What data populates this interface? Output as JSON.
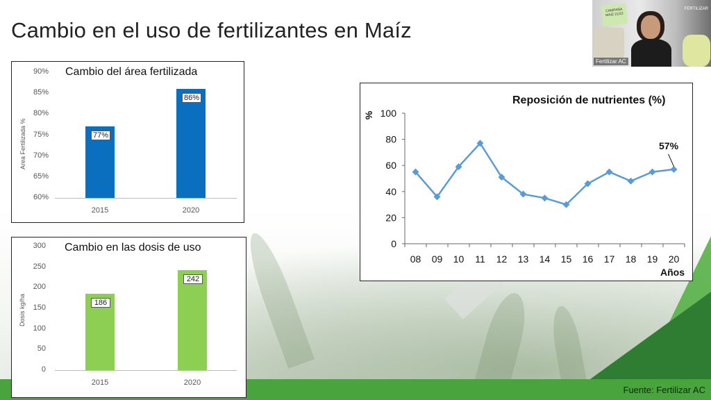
{
  "slide": {
    "title": "Cambio en el uso de fertilizantes en Maíz",
    "source": "Fuente: Fertilizar AC"
  },
  "video": {
    "participant_name": "Fertilizar AC",
    "brand_logo": "FERTILIZAR",
    "sticky_note": "CAMPAÑA MAÍZ 21/22"
  },
  "chart_data": [
    {
      "type": "bar",
      "title": "Cambio del área fertilizada",
      "ylabel": "Area Fertilizada %",
      "categories": [
        "2015",
        "2020"
      ],
      "values": [
        77,
        86
      ],
      "value_labels": [
        "77%",
        "86%"
      ],
      "yticks": [
        "60%",
        "65%",
        "70%",
        "75%",
        "80%",
        "85%",
        "90%"
      ],
      "ylim": [
        60,
        90
      ],
      "color": "#0b6fc0"
    },
    {
      "type": "bar",
      "title": "Cambio en las dosis de uso",
      "ylabel": "Dosis kg/ha",
      "categories": [
        "2015",
        "2020"
      ],
      "values": [
        186,
        242
      ],
      "value_labels": [
        "186",
        "242"
      ],
      "yticks": [
        "0",
        "50",
        "100",
        "150",
        "200",
        "250",
        "300"
      ],
      "ylim": [
        0,
        300
      ],
      "color": "#8ccf52"
    },
    {
      "type": "line",
      "title": "Reposición de nutrientes (%)",
      "ylabel": "%",
      "xlabel": "Años",
      "x": [
        "08",
        "09",
        "10",
        "11",
        "12",
        "13",
        "14",
        "15",
        "16",
        "17",
        "18",
        "19",
        "20"
      ],
      "values": [
        55,
        36,
        59,
        77,
        51,
        38,
        35,
        30,
        46,
        55,
        48,
        55,
        57
      ],
      "yticks": [
        "0",
        "20",
        "40",
        "60",
        "80",
        "100"
      ],
      "ylim": [
        0,
        100
      ],
      "annotation": "57%",
      "color": "#5b9bd5"
    }
  ]
}
